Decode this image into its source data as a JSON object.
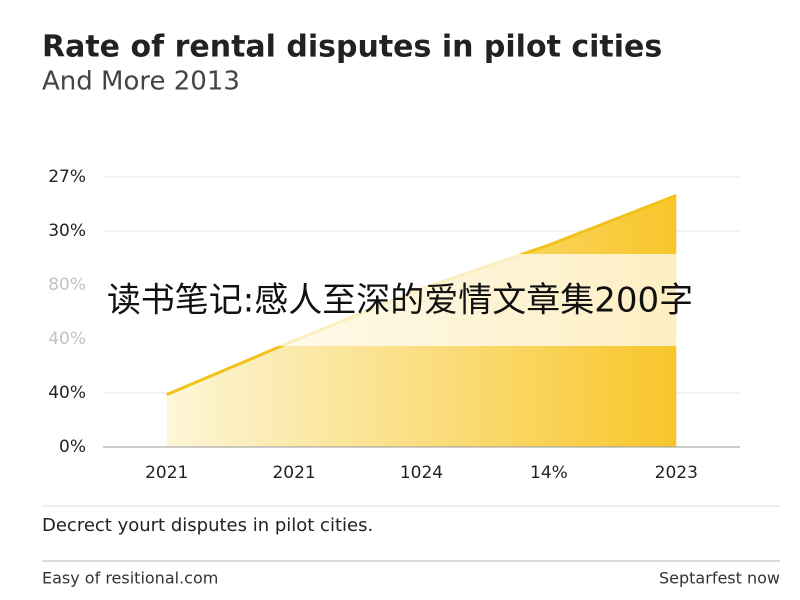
{
  "chart_data": {
    "type": "area",
    "title": "Rate of rental disputes in pilot cities",
    "subtitle": "And More 2013",
    "categories": [
      "2021",
      "2021",
      "1024",
      "14%",
      "2023"
    ],
    "y_labels": [
      "0%",
      "40%",
      "40%",
      "80%",
      "30%",
      "27%"
    ],
    "values": [
      0.97,
      1.97,
      2.93,
      3.74,
      4.66
    ],
    "color": "#f2c21b",
    "grid": true,
    "caption": "Decrect yourt disputes in pilot cities.",
    "overlay": "读书笔记:感人至深的爱情文章集200字",
    "footer_left": "Easy of resitional.com",
    "footer_right": "Septarfest now"
  }
}
